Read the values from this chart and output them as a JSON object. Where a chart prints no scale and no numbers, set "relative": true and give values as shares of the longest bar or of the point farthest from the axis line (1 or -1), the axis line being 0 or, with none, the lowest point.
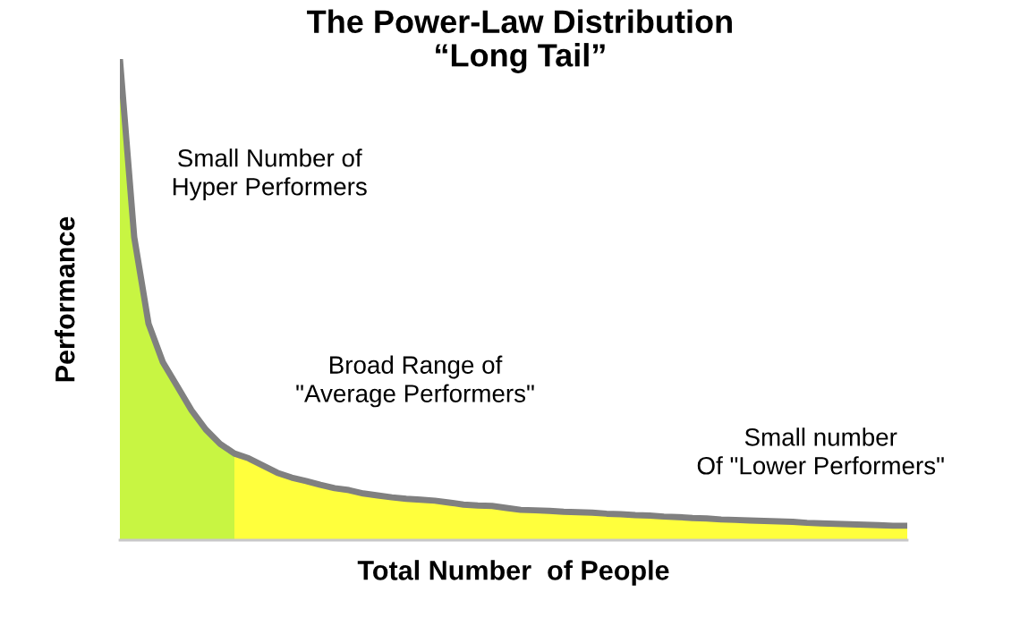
{
  "chart_data": {
    "type": "area",
    "relative": true,
    "title": "The Power-Law Distribution\n“Long Tail”",
    "xlabel": "Total Number  of People",
    "ylabel": "Performance",
    "categories": [
      null,
      null,
      null,
      null,
      null,
      null,
      null,
      null,
      null,
      null,
      null,
      null,
      null,
      null,
      null,
      null,
      null,
      null,
      null,
      null,
      null,
      null,
      null,
      null,
      null,
      null,
      null,
      null,
      null,
      null,
      null,
      null,
      null,
      null,
      null,
      null,
      null,
      null,
      null,
      null,
      null,
      null,
      null,
      null,
      null,
      null,
      null,
      null,
      null,
      null,
      null,
      null,
      null,
      null,
      null,
      null
    ],
    "series": [
      {
        "color": "#c8f542",
        "values": [
          1.0,
          0.63,
          0.45,
          0.37,
          0.32,
          0.27,
          0.23,
          0.2,
          0.18,
          null,
          null,
          null,
          null,
          null,
          null,
          null,
          null,
          null,
          null,
          null,
          null,
          null,
          null,
          null,
          null,
          null,
          null,
          null,
          null,
          null,
          null,
          null,
          null,
          null,
          null,
          null,
          null,
          null,
          null,
          null,
          null,
          null,
          null,
          null,
          null,
          null,
          null,
          null,
          null,
          null,
          null,
          null,
          null,
          null,
          null,
          null
        ]
      },
      {
        "color": "#ffff3c",
        "values": [
          null,
          null,
          null,
          null,
          null,
          null,
          null,
          null,
          0.18,
          0.17,
          0.155,
          0.14,
          0.13,
          0.123,
          0.115,
          0.108,
          0.104,
          0.097,
          0.093,
          0.089,
          0.086,
          0.084,
          0.082,
          0.078,
          0.074,
          0.072,
          0.071,
          0.067,
          0.063,
          0.062,
          0.061,
          0.059,
          0.058,
          0.057,
          0.055,
          0.054,
          0.052,
          0.051,
          0.049,
          0.048,
          0.046,
          0.045,
          0.043,
          0.042,
          0.041,
          0.04,
          0.039,
          0.038,
          0.036,
          0.035,
          0.034,
          0.033,
          0.032,
          0.031,
          0.03,
          0.03
        ]
      },
      {
        "type": "line",
        "color": "#808080",
        "values": [
          1.0,
          0.63,
          0.45,
          0.37,
          0.32,
          0.27,
          0.23,
          0.2,
          0.18,
          0.17,
          0.155,
          0.14,
          0.13,
          0.123,
          0.115,
          0.108,
          0.104,
          0.097,
          0.093,
          0.089,
          0.086,
          0.084,
          0.082,
          0.078,
          0.074,
          0.072,
          0.071,
          0.067,
          0.063,
          0.062,
          0.061,
          0.059,
          0.058,
          0.057,
          0.055,
          0.054,
          0.052,
          0.051,
          0.049,
          0.048,
          0.046,
          0.045,
          0.043,
          0.042,
          0.041,
          0.04,
          0.039,
          0.038,
          0.036,
          0.035,
          0.034,
          0.033,
          0.032,
          0.031,
          0.03,
          0.03
        ]
      }
    ],
    "annotations": [
      "Small Number of\nHyper Performers",
      "Broad Range of\n\"Average Performers\"",
      "Small number\nOf \"Lower Performers\""
    ]
  }
}
